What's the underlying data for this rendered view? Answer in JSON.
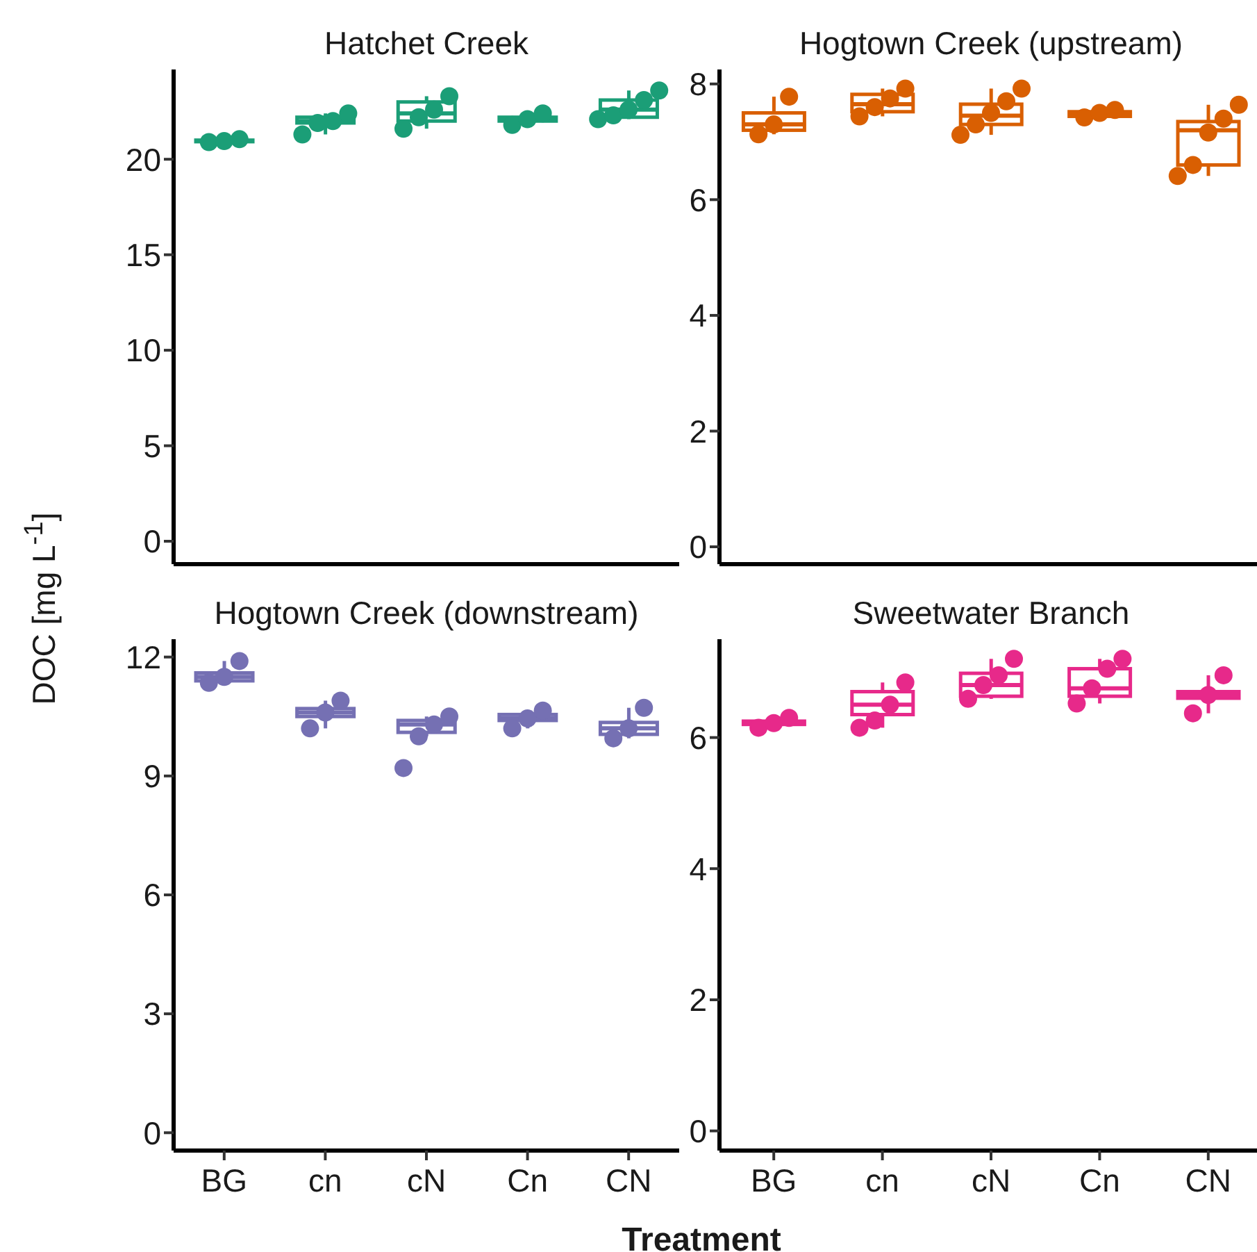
{
  "chart_data": [
    {
      "type": "box",
      "title": "Hatchet Creek",
      "ylabel": "DOC [mg L$^{-1}$]",
      "categories": [
        "BG",
        "cn",
        "cN",
        "Cn",
        "CN"
      ],
      "ylim": [
        -1.2,
        24.7
      ],
      "yticks": [
        0,
        5,
        10,
        15,
        20
      ],
      "tick_labels": "y",
      "series": [
        {
          "color": "#1b9e77",
          "boxes": [
            {
              "low": 20.9,
              "q1": 20.92,
              "median": 20.95,
              "q3": 21.0,
              "high": 21.05
            },
            {
              "low": 21.3,
              "q1": 21.9,
              "median": 22.0,
              "q3": 22.2,
              "high": 22.4
            },
            {
              "low": 21.6,
              "q1": 22.0,
              "median": 22.4,
              "q3": 23.0,
              "high": 23.3
            },
            {
              "low": 21.8,
              "q1": 22.0,
              "median": 22.1,
              "q3": 22.2,
              "high": 22.4
            },
            {
              "low": 22.1,
              "q1": 22.2,
              "median": 22.6,
              "q3": 23.1,
              "high": 23.6
            }
          ]
        },
        {
          "type": "scatter",
          "color": "#1b9e77",
          "x": [
            "BG",
            "BG",
            "BG",
            "cn",
            "cn",
            "cn",
            "cn",
            "cN",
            "cN",
            "cN",
            "cN",
            "Cn",
            "Cn",
            "Cn",
            "CN",
            "CN",
            "CN",
            "CN",
            "CN"
          ],
          "values": [
            20.9,
            20.95,
            21.05,
            21.3,
            21.9,
            22.0,
            22.4,
            21.6,
            22.2,
            22.6,
            23.3,
            21.8,
            22.1,
            22.4,
            22.1,
            22.3,
            22.6,
            23.1,
            23.6
          ]
        }
      ]
    },
    {
      "type": "box",
      "title": "Hogtown Creek (upstream)",
      "categories": [
        "BG",
        "cn",
        "cN",
        "Cn",
        "CN"
      ],
      "ylim": [
        -0.3,
        8.25
      ],
      "yticks": [
        0,
        2,
        4,
        6,
        8
      ],
      "tick_labels": "y",
      "series": [
        {
          "color": "#d95f02",
          "boxes": [
            {
              "low": 7.13,
              "q1": 7.2,
              "median": 7.3,
              "q3": 7.5,
              "high": 7.78
            },
            {
              "low": 7.44,
              "q1": 7.52,
              "median": 7.65,
              "q3": 7.82,
              "high": 7.92
            },
            {
              "low": 7.12,
              "q1": 7.3,
              "median": 7.45,
              "q3": 7.65,
              "high": 7.92
            },
            {
              "low": 7.42,
              "q1": 7.44,
              "median": 7.48,
              "q3": 7.52,
              "high": 7.55
            },
            {
              "low": 6.41,
              "q1": 6.6,
              "median": 7.2,
              "q3": 7.35,
              "high": 7.64
            }
          ]
        },
        {
          "type": "scatter",
          "color": "#d95f02",
          "x": [
            "BG",
            "BG",
            "BG",
            "cn",
            "cn",
            "cn",
            "cn",
            "cN",
            "cN",
            "cN",
            "cN",
            "cN",
            "Cn",
            "Cn",
            "Cn",
            "CN",
            "CN",
            "CN",
            "CN",
            "CN"
          ],
          "values": [
            7.13,
            7.3,
            7.78,
            7.44,
            7.6,
            7.75,
            7.92,
            7.12,
            7.3,
            7.5,
            7.7,
            7.92,
            7.42,
            7.5,
            7.55,
            6.41,
            6.6,
            7.16,
            7.4,
            7.64
          ]
        }
      ]
    },
    {
      "type": "box",
      "title": "Hogtown Creek (downstream)",
      "categories": [
        "BG",
        "cn",
        "cN",
        "Cn",
        "CN"
      ],
      "ylim": [
        -0.45,
        12.45
      ],
      "yticks": [
        0,
        3,
        6,
        9,
        12
      ],
      "series": [
        {
          "color": "#7570b3",
          "boxes": [
            {
              "low": 11.35,
              "q1": 11.4,
              "median": 11.5,
              "q3": 11.6,
              "high": 11.9
            },
            {
              "low": 10.2,
              "q1": 10.5,
              "median": 10.6,
              "q3": 10.7,
              "high": 10.9
            },
            {
              "low": 10.0,
              "q1": 10.1,
              "median": 10.3,
              "q3": 10.4,
              "high": 10.5
            },
            {
              "low": 10.2,
              "q1": 10.4,
              "median": 10.45,
              "q3": 10.55,
              "high": 10.65
            },
            {
              "low": 9.95,
              "q1": 10.05,
              "median": 10.2,
              "q3": 10.35,
              "high": 10.72
            }
          ]
        },
        {
          "type": "scatter",
          "color": "#7570b3",
          "x": [
            "BG",
            "BG",
            "BG",
            "cn",
            "cn",
            "cn",
            "cN",
            "cN",
            "cN",
            "cN",
            "Cn",
            "Cn",
            "Cn",
            "CN",
            "CN",
            "CN"
          ],
          "values": [
            11.35,
            11.5,
            11.9,
            10.2,
            10.6,
            10.9,
            9.2,
            10.0,
            10.3,
            10.5,
            10.2,
            10.45,
            10.65,
            9.95,
            10.2,
            10.72
          ]
        }
      ]
    },
    {
      "type": "box",
      "title": "Sweetwater Branch",
      "xlabel": "Treatment",
      "categories": [
        "BG",
        "cn",
        "cN",
        "Cn",
        "CN"
      ],
      "ylim": [
        -0.3,
        7.5
      ],
      "yticks": [
        0,
        2,
        4,
        6
      ],
      "series": [
        {
          "color": "#e7298a",
          "boxes": [
            {
              "low": 6.15,
              "q1": 6.2,
              "median": 6.22,
              "q3": 6.25,
              "high": 6.3
            },
            {
              "low": 6.15,
              "q1": 6.35,
              "median": 6.5,
              "q3": 6.7,
              "high": 6.84
            },
            {
              "low": 6.59,
              "q1": 6.63,
              "median": 6.8,
              "q3": 6.98,
              "high": 7.2
            },
            {
              "low": 6.52,
              "q1": 6.63,
              "median": 6.75,
              "q3": 7.05,
              "high": 7.2
            },
            {
              "low": 6.37,
              "q1": 6.6,
              "median": 6.65,
              "q3": 6.7,
              "high": 6.95
            }
          ]
        },
        {
          "type": "scatter",
          "color": "#e7298a",
          "x": [
            "BG",
            "BG",
            "BG",
            "cn",
            "cn",
            "cn",
            "cn",
            "cN",
            "cN",
            "cN",
            "cN",
            "Cn",
            "Cn",
            "Cn",
            "Cn",
            "CN",
            "CN",
            "CN"
          ],
          "values": [
            6.15,
            6.22,
            6.3,
            6.15,
            6.26,
            6.5,
            6.84,
            6.59,
            6.8,
            6.95,
            7.2,
            6.52,
            6.75,
            7.05,
            7.2,
            6.37,
            6.65,
            6.95
          ]
        }
      ]
    }
  ]
}
